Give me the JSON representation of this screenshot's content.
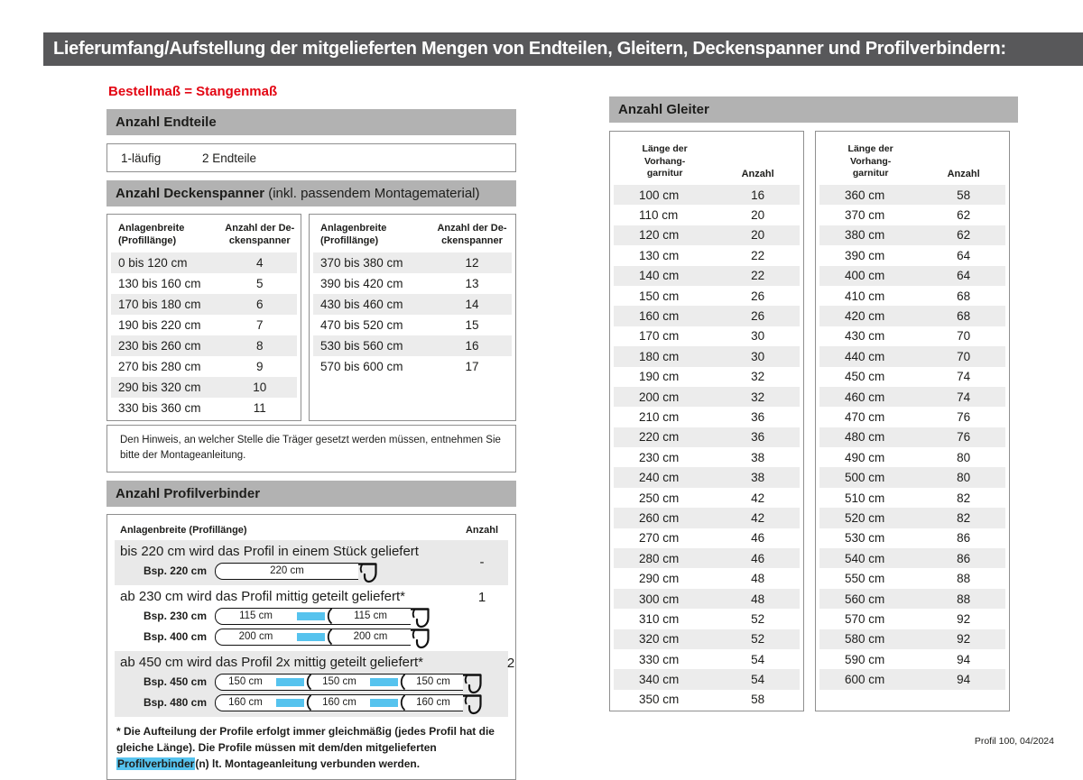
{
  "page": {
    "title": "Lieferumfang/Aufstellung der mitgelieferten Mengen von Endteilen, Gleitern, Deckenspanner und Profilverbindern:",
    "footer": "Profil 100, 04/2024",
    "colors": {
      "titlebar_bg": "#58585a",
      "section_bar_bg": "#b2b2b2",
      "row_stripe": "#ececec",
      "accent_red": "#e30613",
      "connector_blue": "#56c3ee"
    }
  },
  "left": {
    "order_note": "Bestellmaß = Stangenmaß",
    "endteile": {
      "heading": "Anzahl Endteile",
      "row": {
        "label": "1-läufig",
        "value": "2 Endteile"
      }
    },
    "deckenspanner": {
      "heading_bold": "Anzahl Deckenspanner",
      "heading_rest": " (inkl. passendem Montagematerial)",
      "col1_header": "Anlagenbreite\n(Profillänge)",
      "col2_header": "Anzahl der De-\nckenspanner",
      "table1": [
        [
          "0 bis 120 cm",
          "4"
        ],
        [
          "130 bis 160 cm",
          "5"
        ],
        [
          "170 bis 180 cm",
          "6"
        ],
        [
          "190 bis 220 cm",
          "7"
        ],
        [
          "230 bis 260 cm",
          "8"
        ],
        [
          "270 bis 280 cm",
          "9"
        ],
        [
          "290 bis 320 cm",
          "10"
        ],
        [
          "330 bis 360 cm",
          "11"
        ]
      ],
      "table2": [
        [
          "370 bis 380 cm",
          "12"
        ],
        [
          "390 bis 420 cm",
          "13"
        ],
        [
          "430 bis 460 cm",
          "14"
        ],
        [
          "470 bis 520 cm",
          "15"
        ],
        [
          "530 bis 560 cm",
          "16"
        ],
        [
          "570 bis 600 cm",
          "17"
        ]
      ],
      "note": "Den Hinweis, an welcher Stelle die Träger gesetzt werden müssen, entnehmen Sie bitte der Montageanleitung."
    },
    "profilverbinder": {
      "heading": "Anzahl Profilverbinder",
      "col1_header": "Anlagenbreite (Profillänge)",
      "col2_header": "Anzahl",
      "rows": [
        {
          "description": "bis 220 cm wird das Profil in einem Stück geliefert",
          "anzahl": "-",
          "examples": [
            {
              "label": "Bsp. 220 cm",
              "segments": [
                "220 cm"
              ]
            }
          ]
        },
        {
          "description": "ab 230 cm wird das Profil mittig geteilt geliefert*",
          "anzahl": "1",
          "examples": [
            {
              "label": "Bsp. 230 cm",
              "segments": [
                "115 cm",
                "115 cm"
              ]
            },
            {
              "label": "Bsp. 400 cm",
              "segments": [
                "200 cm",
                "200 cm"
              ]
            }
          ]
        },
        {
          "description": "ab 450 cm wird das Profil 2x mittig geteilt geliefert*",
          "anzahl": "2",
          "examples": [
            {
              "label": "Bsp. 450 cm",
              "segments": [
                "150 cm",
                "150 cm",
                "150 cm"
              ]
            },
            {
              "label": "Bsp. 480 cm",
              "segments": [
                "160 cm",
                "160 cm",
                "160 cm"
              ]
            }
          ]
        }
      ],
      "footnote_pre": "* Die Aufteilung der Profile erfolgt immer gleichmäßig (jedes Profil hat die gleiche Länge). Die Profile müssen mit dem/den mitgelieferten ",
      "footnote_highlight": "Profilverbinder",
      "footnote_post": "(n) lt. Montageanleitung verbunden werden."
    }
  },
  "right": {
    "gleiter": {
      "heading": "Anzahl Gleiter",
      "col1_header": "Länge der\nVorhang-\ngarnitur",
      "col2_header": "Anzahl",
      "table1": [
        [
          "100 cm",
          "16"
        ],
        [
          "110 cm",
          "20"
        ],
        [
          "120 cm",
          "20"
        ],
        [
          "130 cm",
          "22"
        ],
        [
          "140 cm",
          "22"
        ],
        [
          "150 cm",
          "26"
        ],
        [
          "160 cm",
          "26"
        ],
        [
          "170 cm",
          "30"
        ],
        [
          "180 cm",
          "30"
        ],
        [
          "190 cm",
          "32"
        ],
        [
          "200 cm",
          "32"
        ],
        [
          "210 cm",
          "36"
        ],
        [
          "220 cm",
          "36"
        ],
        [
          "230 cm",
          "38"
        ],
        [
          "240 cm",
          "38"
        ],
        [
          "250 cm",
          "42"
        ],
        [
          "260 cm",
          "42"
        ],
        [
          "270 cm",
          "46"
        ],
        [
          "280 cm",
          "46"
        ],
        [
          "290 cm",
          "48"
        ],
        [
          "300 cm",
          "48"
        ],
        [
          "310 cm",
          "52"
        ],
        [
          "320 cm",
          "52"
        ],
        [
          "330 cm",
          "54"
        ],
        [
          "340 cm",
          "54"
        ],
        [
          "350 cm",
          "58"
        ]
      ],
      "table2": [
        [
          "360 cm",
          "58"
        ],
        [
          "370 cm",
          "62"
        ],
        [
          "380 cm",
          "62"
        ],
        [
          "390 cm",
          "64"
        ],
        [
          "400 cm",
          "64"
        ],
        [
          "410 cm",
          "68"
        ],
        [
          "420 cm",
          "68"
        ],
        [
          "430 cm",
          "70"
        ],
        [
          "440 cm",
          "70"
        ],
        [
          "450 cm",
          "74"
        ],
        [
          "460 cm",
          "74"
        ],
        [
          "470 cm",
          "76"
        ],
        [
          "480 cm",
          "76"
        ],
        [
          "490 cm",
          "80"
        ],
        [
          "500 cm",
          "80"
        ],
        [
          "510 cm",
          "82"
        ],
        [
          "520 cm",
          "82"
        ],
        [
          "530 cm",
          "86"
        ],
        [
          "540 cm",
          "86"
        ],
        [
          "550 cm",
          "88"
        ],
        [
          "560 cm",
          "88"
        ],
        [
          "570 cm",
          "92"
        ],
        [
          "580 cm",
          "92"
        ],
        [
          "590 cm",
          "94"
        ],
        [
          "600 cm",
          "94"
        ]
      ]
    }
  }
}
